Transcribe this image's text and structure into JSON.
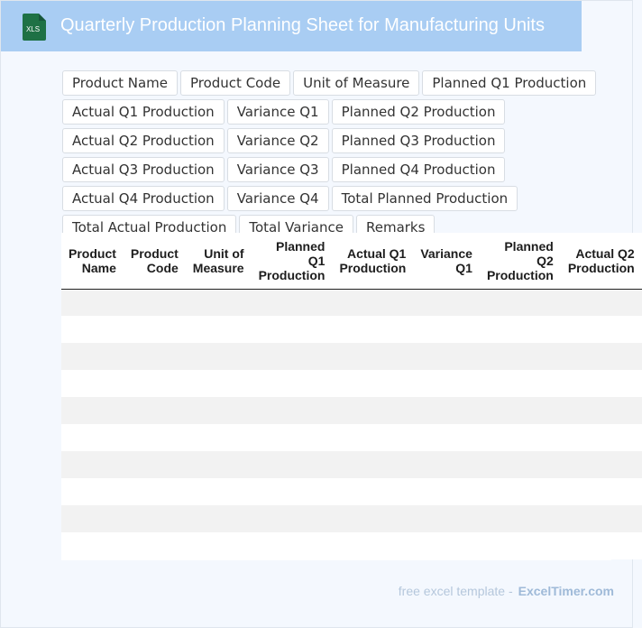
{
  "header": {
    "title": "Quarterly Production Planning Sheet for Manufacturing Units",
    "icon": "xls-file-icon",
    "icon_text": "XLS",
    "icon_color": "#1e7145"
  },
  "columns": [
    "Product Name",
    "Product Code",
    "Unit of Measure",
    "Planned Q1 Production",
    "Actual Q1 Production",
    "Variance Q1",
    "Planned Q2 Production",
    "Actual Q2 Production",
    "Variance Q2",
    "Planned Q3 Production",
    "Actual Q3 Production",
    "Variance Q3",
    "Planned Q4 Production",
    "Actual Q4 Production",
    "Variance Q4",
    "Total Planned Production",
    "Total Actual Production",
    "Total Variance",
    "Remarks"
  ],
  "table": {
    "headers": [
      "Product Name",
      "Product Code",
      "Unit of Measure",
      "Planned Q1 Production",
      "Actual Q1 Production",
      "Variance Q1",
      "Planned Q2 Production",
      "Actual Q2 Production"
    ],
    "rows": [
      [
        "",
        "",
        "",
        "",
        "",
        "",
        "",
        ""
      ],
      [
        "",
        "",
        "",
        "",
        "",
        "",
        "",
        ""
      ],
      [
        "",
        "",
        "",
        "",
        "",
        "",
        "",
        ""
      ],
      [
        "",
        "",
        "",
        "",
        "",
        "",
        "",
        ""
      ],
      [
        "",
        "",
        "",
        "",
        "",
        "",
        "",
        ""
      ],
      [
        "",
        "",
        "",
        "",
        "",
        "",
        "",
        ""
      ],
      [
        "",
        "",
        "",
        "",
        "",
        "",
        "",
        ""
      ],
      [
        "",
        "",
        "",
        "",
        "",
        "",
        "",
        ""
      ],
      [
        "",
        "",
        "",
        "",
        "",
        "",
        "",
        ""
      ],
      [
        "",
        "",
        "",
        "",
        "",
        "",
        "",
        ""
      ]
    ]
  },
  "footer": {
    "label": "free excel template -",
    "brand": "ExcelTimer.com"
  }
}
